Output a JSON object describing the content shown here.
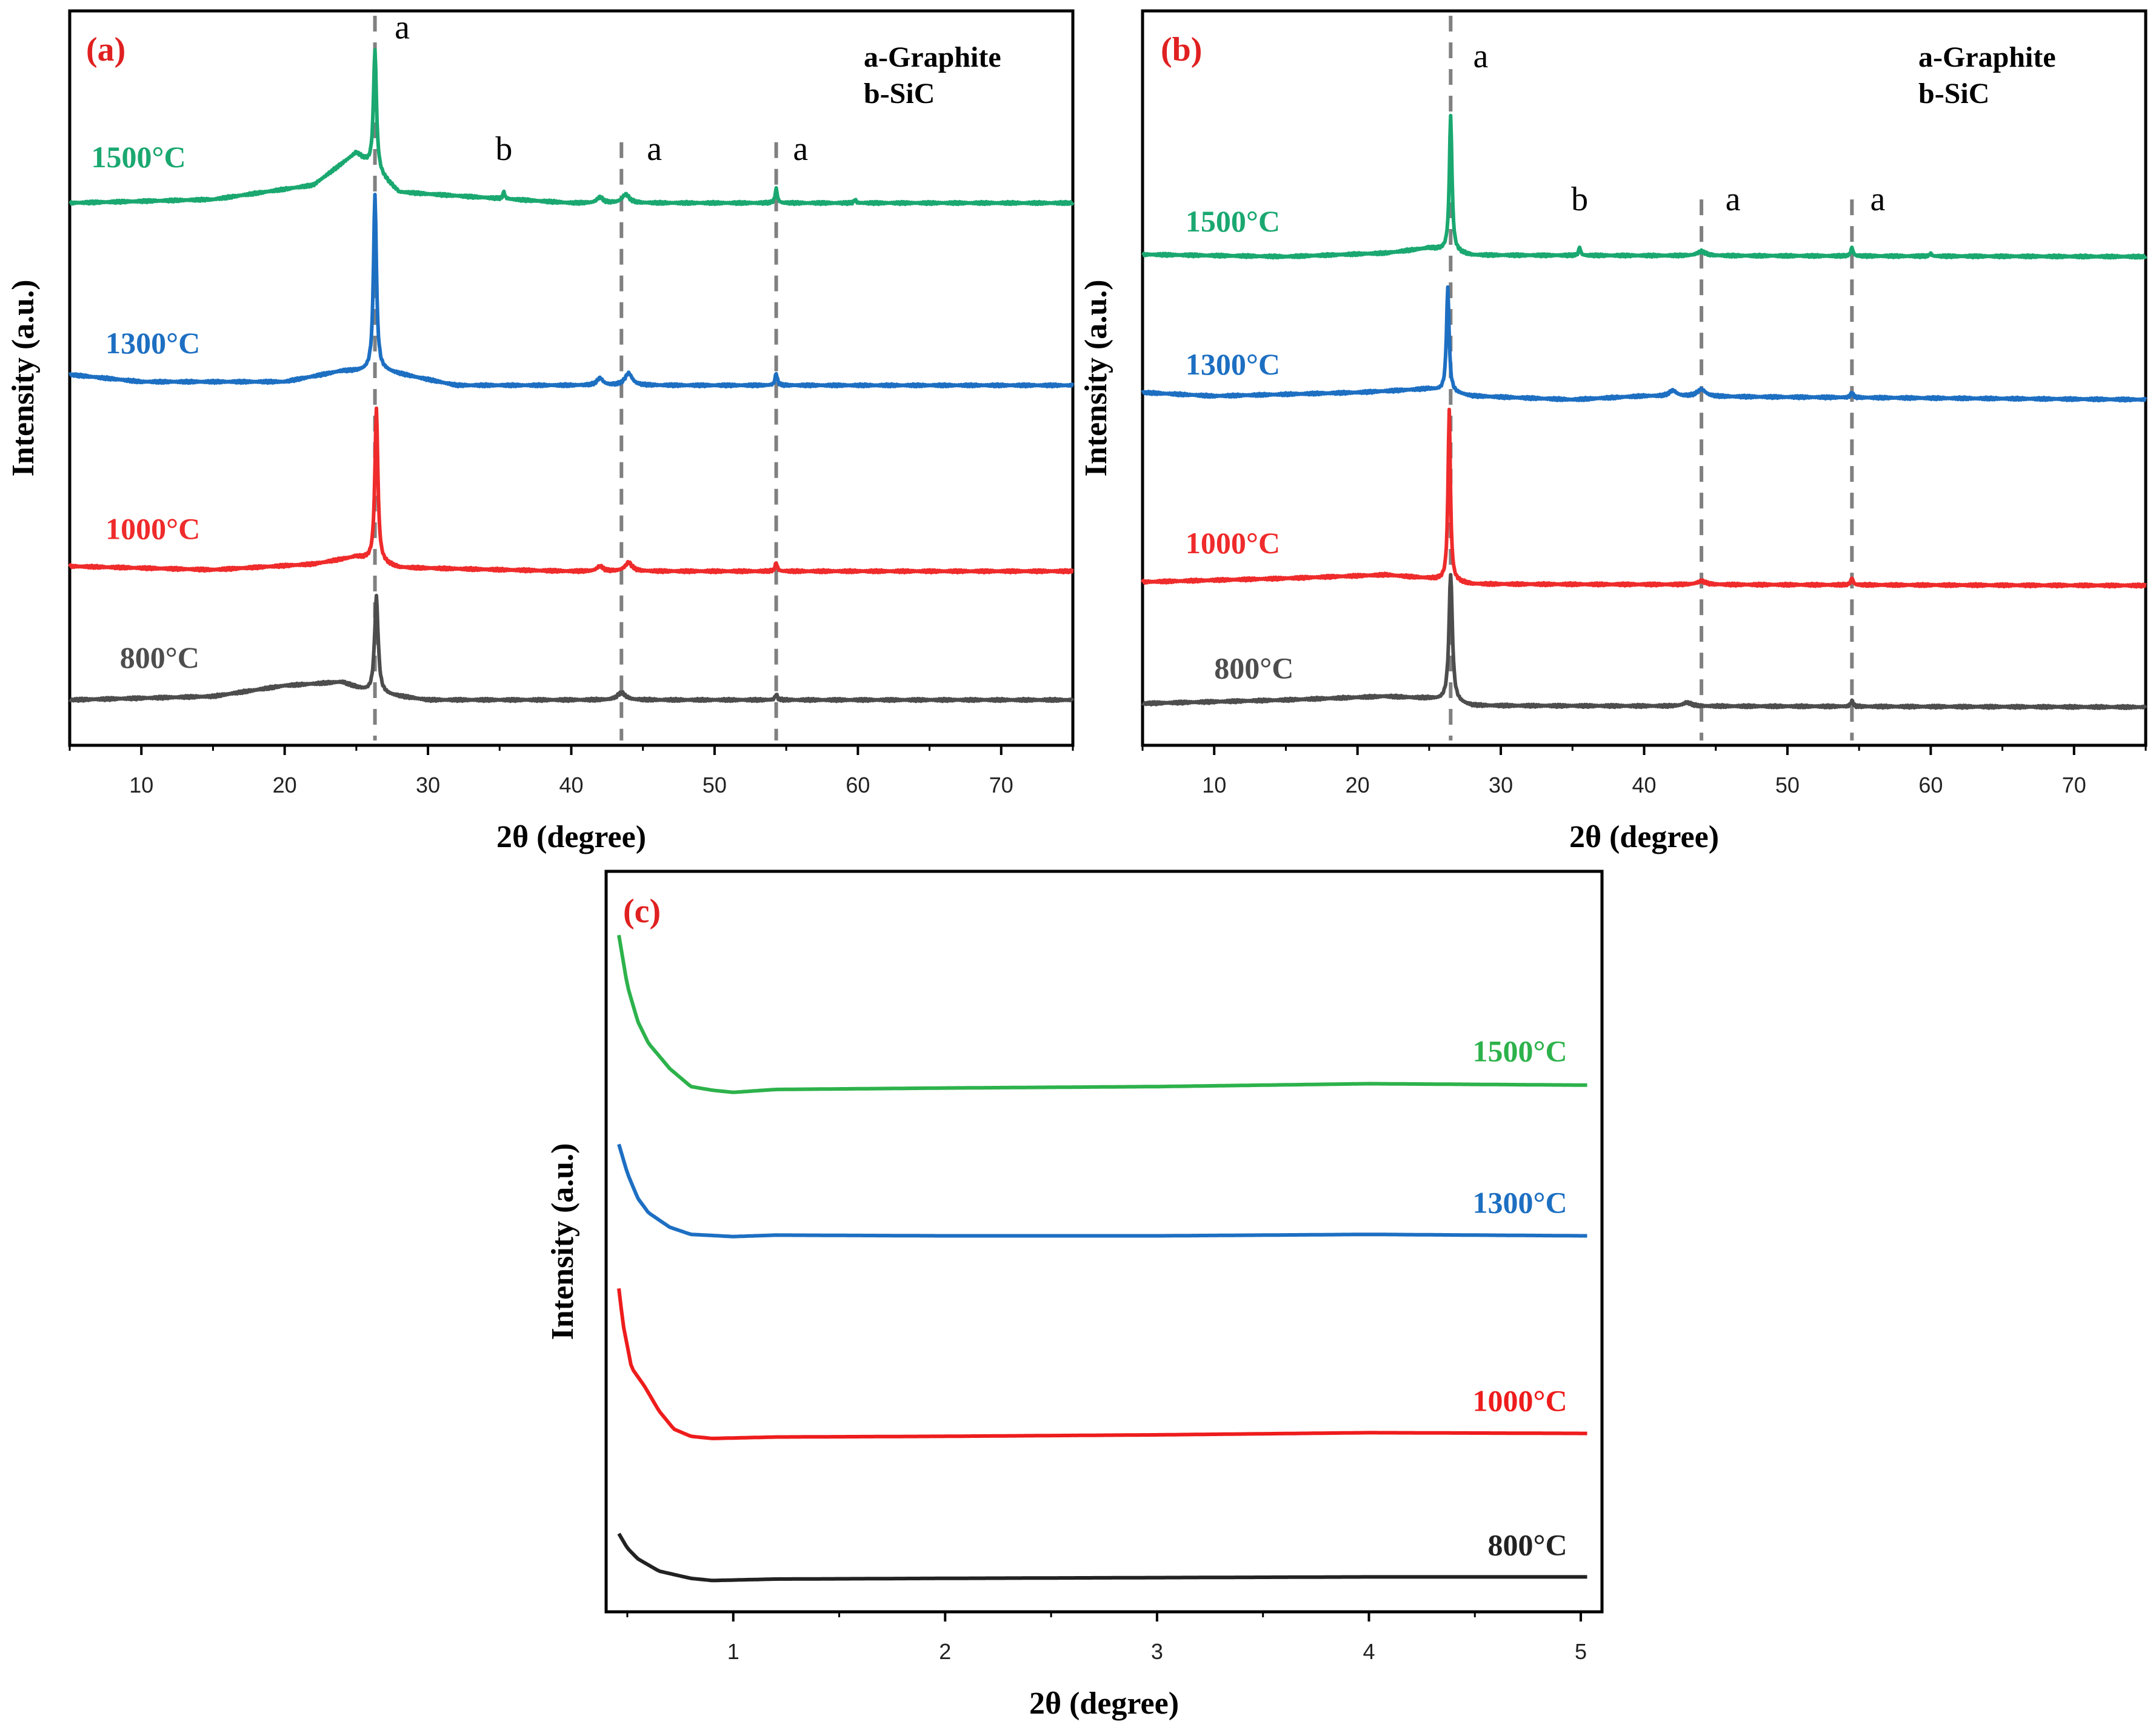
{
  "chart_data": [
    {
      "panel": "(a)",
      "type": "line",
      "title": "",
      "xlabel": "2θ (degree)",
      "ylabel": "Intensity (a.u.)",
      "xlim": [
        5,
        75
      ],
      "ylim": [
        0,
        10
      ],
      "xticks": [
        10,
        20,
        30,
        40,
        50,
        60,
        70
      ],
      "yticks": [],
      "grid": false,
      "legend_position": "top-right",
      "legend": [
        "a-Graphite",
        "b-SiC"
      ],
      "reference_lines_x": [
        26.3,
        43.5,
        54.3
      ],
      "annotations": [
        {
          "text": "a",
          "x": 28.2,
          "y": 9.8
        },
        {
          "text": "b",
          "x": 35.3,
          "y": 8.1
        },
        {
          "text": "a",
          "x": 45.8,
          "y": 8.1
        },
        {
          "text": "a",
          "x": 56.0,
          "y": 8.1
        }
      ],
      "series": [
        {
          "name": "1500°C",
          "color": "#1aa870",
          "offset": 7.5,
          "label_x": 6.5,
          "label_y": 8.0,
          "baseline": [
            [
              5,
              0.0
            ],
            [
              15,
              0.05
            ],
            [
              22,
              0.25
            ],
            [
              25,
              0.7
            ],
            [
              28,
              0.15
            ],
            [
              40,
              0.0
            ],
            [
              50,
              0.0
            ],
            [
              75,
              0.0
            ]
          ],
          "peaks": [
            [
              26.3,
              1.68,
              0.25
            ],
            [
              35.3,
              0.1,
              0.15
            ],
            [
              42.0,
              0.08,
              0.5
            ],
            [
              43.8,
              0.12,
              0.6
            ],
            [
              54.3,
              0.2,
              0.18
            ],
            [
              59.8,
              0.05,
              0.15
            ]
          ]
        },
        {
          "name": "1300°C",
          "color": "#1d6fc2",
          "offset": 4.95,
          "label_x": 7.5,
          "label_y": 5.4,
          "baseline": [
            [
              5,
              0.15
            ],
            [
              10,
              0.05
            ],
            [
              20,
              0.05
            ],
            [
              24,
              0.2
            ],
            [
              27,
              0.2
            ],
            [
              32,
              0.0
            ],
            [
              40,
              0.0
            ],
            [
              75,
              0.0
            ]
          ],
          "peaks": [
            [
              26.3,
              2.45,
              0.25
            ],
            [
              42.0,
              0.1,
              0.5
            ],
            [
              44.0,
              0.17,
              0.6
            ],
            [
              54.3,
              0.17,
              0.18
            ]
          ]
        },
        {
          "name": "1000°C",
          "color": "#ef2b2b",
          "offset": 2.35,
          "label_x": 7.5,
          "label_y": 2.8,
          "baseline": [
            [
              5,
              0.07
            ],
            [
              15,
              0.02
            ],
            [
              22,
              0.1
            ],
            [
              25,
              0.2
            ],
            [
              28,
              0.05
            ],
            [
              40,
              0.0
            ],
            [
              75,
              0.0
            ]
          ],
          "peaks": [
            [
              26.4,
              2.15,
              0.25
            ],
            [
              42.0,
              0.07,
              0.5
            ],
            [
              44.0,
              0.12,
              0.6
            ],
            [
              54.3,
              0.12,
              0.18
            ]
          ]
        },
        {
          "name": "800°C",
          "color": "#4d4d4d",
          "offset": 0.55,
          "label_x": 8.5,
          "label_y": 1.0,
          "baseline": [
            [
              5,
              0.0
            ],
            [
              15,
              0.05
            ],
            [
              20,
              0.2
            ],
            [
              24,
              0.25
            ],
            [
              26,
              0.1
            ],
            [
              30,
              0.0
            ],
            [
              40,
              0.0
            ],
            [
              75,
              0.0
            ]
          ],
          "peaks": [
            [
              26.4,
              1.35,
              0.3
            ],
            [
              43.5,
              0.1,
              0.7
            ],
            [
              54.3,
              0.08,
              0.18
            ]
          ]
        }
      ]
    },
    {
      "panel": "(b)",
      "type": "line",
      "title": "",
      "xlabel": "2θ (degree)",
      "ylabel": "Intensity (a.u.)",
      "xlim": [
        5,
        75
      ],
      "ylim": [
        0,
        10
      ],
      "xticks": [
        10,
        20,
        30,
        40,
        50,
        60,
        70
      ],
      "yticks": [],
      "grid": false,
      "legend_position": "top-right",
      "legend": [
        "a-Graphite",
        "b-SiC"
      ],
      "reference_lines_x": [
        26.5,
        44.0,
        54.5
      ],
      "annotations": [
        {
          "text": "a",
          "x": 28.6,
          "y": 9.4
        },
        {
          "text": "b",
          "x": 35.5,
          "y": 7.4
        },
        {
          "text": "a",
          "x": 46.2,
          "y": 7.4
        },
        {
          "text": "a",
          "x": 56.3,
          "y": 7.4
        }
      ],
      "series": [
        {
          "name": "1500°C",
          "color": "#1aa870",
          "offset": 6.75,
          "label_x": 8.0,
          "label_y": 7.1,
          "baseline": [
            [
              5,
              0.03
            ],
            [
              15,
              0.0
            ],
            [
              22,
              0.05
            ],
            [
              25,
              0.12
            ],
            [
              28,
              0.02
            ],
            [
              75,
              0.0
            ]
          ],
          "peaks": [
            [
              26.5,
              1.9,
              0.22
            ],
            [
              35.5,
              0.12,
              0.15
            ],
            [
              44.0,
              0.06,
              0.7
            ],
            [
              54.5,
              0.12,
              0.18
            ],
            [
              60.0,
              0.04,
              0.15
            ]
          ]
        },
        {
          "name": "1300°C",
          "color": "#1d6fc2",
          "offset": 4.75,
          "label_x": 8.0,
          "label_y": 5.1,
          "baseline": [
            [
              5,
              0.1
            ],
            [
              10,
              0.05
            ],
            [
              20,
              0.1
            ],
            [
              25,
              0.15
            ],
            [
              28,
              0.05
            ],
            [
              35,
              0.0
            ],
            [
              40,
              0.05
            ],
            [
              75,
              0.0
            ]
          ],
          "peaks": [
            [
              26.3,
              1.45,
              0.22
            ],
            [
              42.0,
              0.08,
              0.6
            ],
            [
              44.0,
              0.1,
              0.7
            ],
            [
              54.5,
              0.08,
              0.18
            ]
          ]
        },
        {
          "name": "1000°C",
          "color": "#ef2b2b",
          "offset": 2.15,
          "label_x": 8.0,
          "label_y": 2.6,
          "baseline": [
            [
              5,
              0.05
            ],
            [
              15,
              0.1
            ],
            [
              22,
              0.15
            ],
            [
              25,
              0.1
            ],
            [
              28,
              0.02
            ],
            [
              75,
              0.0
            ]
          ],
          "peaks": [
            [
              26.4,
              2.4,
              0.2
            ],
            [
              44.0,
              0.05,
              0.7
            ],
            [
              54.5,
              0.1,
              0.18
            ]
          ]
        },
        {
          "name": "800°C",
          "color": "#4d4d4d",
          "offset": 0.45,
          "label_x": 10.0,
          "label_y": 0.85,
          "baseline": [
            [
              5,
              0.05
            ],
            [
              15,
              0.1
            ],
            [
              22,
              0.15
            ],
            [
              25,
              0.12
            ],
            [
              28,
              0.02
            ],
            [
              75,
              0.0
            ]
          ],
          "peaks": [
            [
              26.5,
              1.8,
              0.28
            ],
            [
              43.0,
              0.05,
              0.7
            ],
            [
              54.5,
              0.08,
              0.18
            ]
          ]
        }
      ]
    },
    {
      "panel": "(c)",
      "type": "line",
      "title": "",
      "xlabel": "2θ (degree)",
      "ylabel": "Intensity (a.u.)",
      "xlim": [
        0.4,
        5.1
      ],
      "ylim": [
        0,
        10
      ],
      "xticks": [
        1,
        2,
        3,
        4,
        5
      ],
      "yticks": [],
      "grid": false,
      "legend_position": "none",
      "series": [
        {
          "name": "1500°C",
          "color": "#2db24b",
          "label_x": 4.75,
          "label_y": 7.55,
          "points": [
            [
              0.46,
              9.3
            ],
            [
              0.5,
              8.6
            ],
            [
              0.55,
              8.1
            ],
            [
              0.6,
              7.8
            ],
            [
              0.7,
              7.45
            ],
            [
              0.8,
              7.2
            ],
            [
              0.9,
              7.15
            ],
            [
              1.0,
              7.12
            ],
            [
              1.2,
              7.16
            ],
            [
              2.0,
              7.18
            ],
            [
              3.0,
              7.2
            ],
            [
              4.0,
              7.24
            ],
            [
              5.03,
              7.22
            ]
          ]
        },
        {
          "name": "1300°C",
          "color": "#1d6fc2",
          "label_x": 4.75,
          "label_y": 5.45,
          "points": [
            [
              0.46,
              6.4
            ],
            [
              0.5,
              6.0
            ],
            [
              0.55,
              5.65
            ],
            [
              0.6,
              5.45
            ],
            [
              0.7,
              5.25
            ],
            [
              0.8,
              5.15
            ],
            [
              1.0,
              5.12
            ],
            [
              1.2,
              5.14
            ],
            [
              2.0,
              5.13
            ],
            [
              3.0,
              5.13
            ],
            [
              4.0,
              5.15
            ],
            [
              5.03,
              5.13
            ]
          ]
        },
        {
          "name": "1000°C",
          "color": "#ee1c1c",
          "label_x": 4.75,
          "label_y": 2.7,
          "points": [
            [
              0.46,
              4.4
            ],
            [
              0.48,
              3.9
            ],
            [
              0.52,
              3.3
            ],
            [
              0.58,
              3.05
            ],
            [
              0.65,
              2.7
            ],
            [
              0.72,
              2.45
            ],
            [
              0.8,
              2.35
            ],
            [
              0.9,
              2.32
            ],
            [
              1.2,
              2.34
            ],
            [
              2.0,
              2.35
            ],
            [
              3.0,
              2.37
            ],
            [
              4.0,
              2.4
            ],
            [
              5.03,
              2.39
            ]
          ]
        },
        {
          "name": "800°C",
          "color": "#222222",
          "label_x": 4.75,
          "label_y": 0.7,
          "points": [
            [
              0.46,
              1.0
            ],
            [
              0.5,
              0.8
            ],
            [
              0.55,
              0.65
            ],
            [
              0.65,
              0.48
            ],
            [
              0.8,
              0.38
            ],
            [
              0.9,
              0.35
            ],
            [
              1.2,
              0.37
            ],
            [
              2.0,
              0.38
            ],
            [
              3.0,
              0.39
            ],
            [
              4.0,
              0.4
            ],
            [
              5.03,
              0.4
            ]
          ]
        }
      ]
    }
  ]
}
